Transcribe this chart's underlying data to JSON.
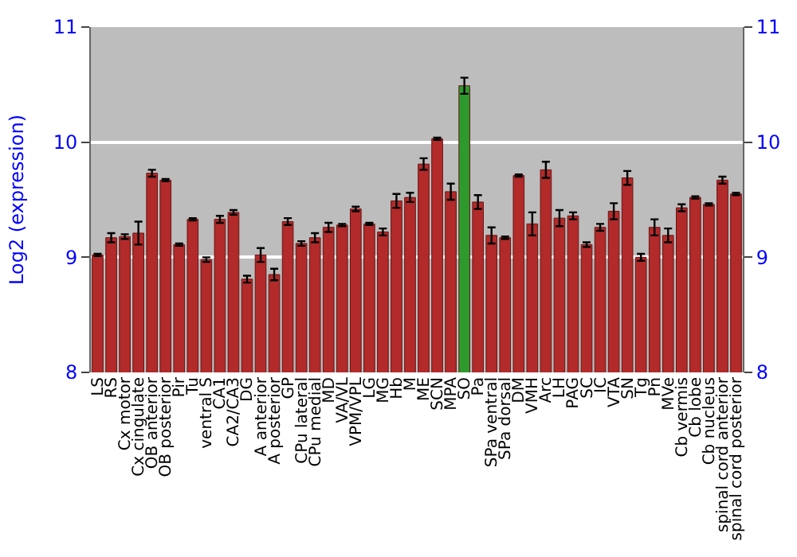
{
  "chart_data": {
    "type": "bar",
    "ylabel": "Log2 (expression)",
    "categories": [
      "LS",
      "RS",
      "Cx motor",
      "Cx cingulate",
      "OB anterior",
      "OB posterior",
      "Pir",
      "Tu",
      "ventral S",
      "CA1",
      "CA2/CA3",
      "DG",
      "A anterior",
      "A posterior",
      "GP",
      "CPu lateral",
      "CPu medial",
      "MD",
      "VA/VL",
      "VPM/VPL",
      "LG",
      "MG",
      "Hb",
      "M",
      "ME",
      "SCN",
      "MPA",
      "SO",
      "Pa",
      "SPa ventral",
      "SPa dorsal",
      "DM",
      "VMH",
      "Arc",
      "LH",
      "PAG",
      "SC",
      "IC",
      "VTA",
      "SN",
      "Tg",
      "Pn",
      "MVe",
      "Cb vermis",
      "Cb lobe",
      "Cb nucleus",
      "spinal cord anterior",
      "spinal cord posterior"
    ],
    "values": [
      9.02,
      9.17,
      9.18,
      9.21,
      9.73,
      9.67,
      9.11,
      9.33,
      8.98,
      9.33,
      9.39,
      8.81,
      9.02,
      8.85,
      9.31,
      9.12,
      9.17,
      9.26,
      9.28,
      9.42,
      9.29,
      9.22,
      9.49,
      9.52,
      9.81,
      10.03,
      9.57,
      10.49,
      9.48,
      9.19,
      9.17,
      9.71,
      9.29,
      9.76,
      9.34,
      9.36,
      9.11,
      9.26,
      9.4,
      9.69,
      9.0,
      9.26,
      9.19,
      9.43,
      9.52,
      9.46,
      9.67,
      9.55
    ],
    "errors": [
      0.01,
      0.04,
      0.02,
      0.1,
      0.03,
      0.01,
      0.01,
      0.01,
      0.02,
      0.03,
      0.02,
      0.03,
      0.06,
      0.05,
      0.03,
      0.02,
      0.04,
      0.04,
      0.01,
      0.02,
      0.01,
      0.03,
      0.06,
      0.04,
      0.05,
      0.01,
      0.07,
      0.07,
      0.06,
      0.07,
      0.01,
      0.01,
      0.1,
      0.07,
      0.07,
      0.03,
      0.02,
      0.03,
      0.07,
      0.06,
      0.03,
      0.07,
      0.06,
      0.03,
      0.01,
      0.01,
      0.03,
      0.01
    ],
    "colors": [
      "#b22a2a",
      "#b22a2a",
      "#b22a2a",
      "#b22a2a",
      "#b22a2a",
      "#b22a2a",
      "#b22a2a",
      "#b22a2a",
      "#b22a2a",
      "#b22a2a",
      "#b22a2a",
      "#b22a2a",
      "#b22a2a",
      "#b22a2a",
      "#b22a2a",
      "#b22a2a",
      "#b22a2a",
      "#b22a2a",
      "#b22a2a",
      "#b22a2a",
      "#b22a2a",
      "#b22a2a",
      "#b22a2a",
      "#b22a2a",
      "#b22a2a",
      "#b22a2a",
      "#b22a2a",
      "#2e9a2e",
      "#b22a2a",
      "#b22a2a",
      "#b22a2a",
      "#b22a2a",
      "#b22a2a",
      "#b22a2a",
      "#b22a2a",
      "#b22a2a",
      "#b22a2a",
      "#b22a2a",
      "#b22a2a",
      "#b22a2a",
      "#b22a2a",
      "#b22a2a",
      "#b22a2a",
      "#b22a2a",
      "#b22a2a",
      "#b22a2a",
      "#b22a2a",
      "#b22a2a"
    ],
    "ylim": [
      8,
      11
    ],
    "yticks": [
      8,
      9,
      10,
      11
    ],
    "y2lim": [
      8,
      11
    ],
    "y2ticks": [
      8,
      9,
      10,
      11
    ],
    "grid": "y"
  }
}
